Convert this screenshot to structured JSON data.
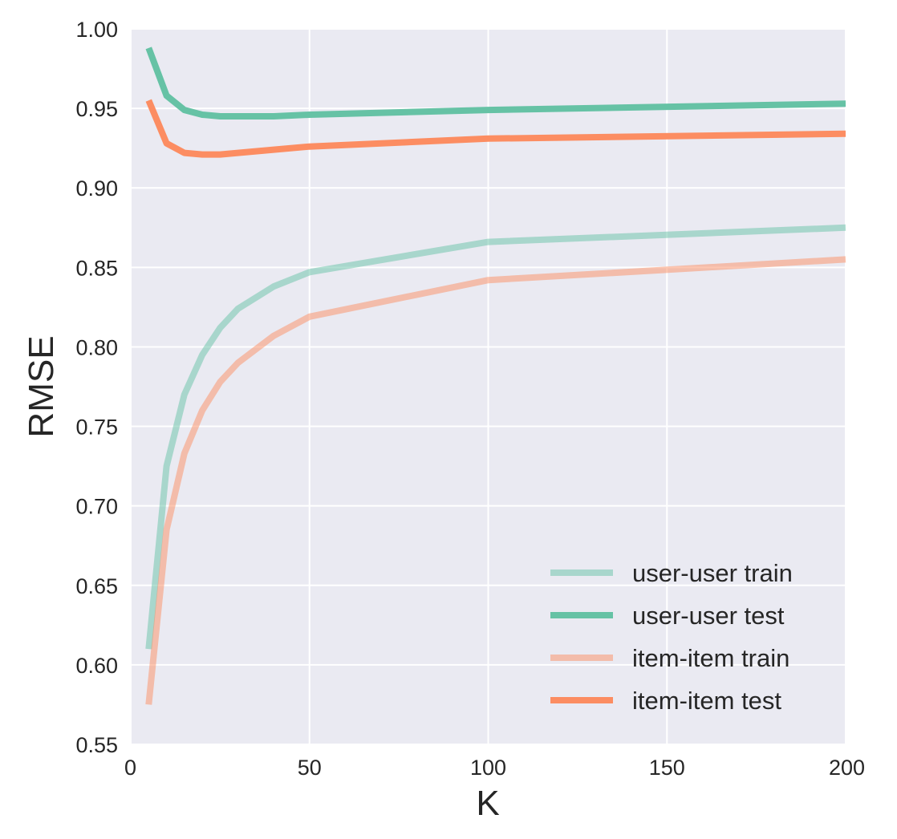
{
  "chart_data": {
    "type": "line",
    "title": "",
    "xlabel": "K",
    "ylabel": "RMSE",
    "xlim": [
      0,
      200
    ],
    "ylim": [
      0.55,
      1.0
    ],
    "xticks": [
      0,
      50,
      100,
      150,
      200
    ],
    "xtick_labels": [
      "0",
      "50",
      "100",
      "150",
      "200"
    ],
    "yticks": [
      0.55,
      0.6,
      0.65,
      0.7,
      0.75,
      0.8,
      0.85,
      0.9,
      0.95,
      1.0
    ],
    "ytick_labels": [
      "0.55",
      "0.60",
      "0.65",
      "0.70",
      "0.75",
      "0.80",
      "0.85",
      "0.90",
      "0.95",
      "1.00"
    ],
    "grid": true,
    "legend_position": "lower-right",
    "background_color": "#EAEAF2",
    "series": [
      {
        "name": "user-user train",
        "color": "#66C2A5",
        "opacity": 0.5,
        "x": [
          5,
          10,
          15,
          20,
          25,
          30,
          40,
          50,
          100,
          200
        ],
        "values": [
          0.61,
          0.725,
          0.77,
          0.795,
          0.812,
          0.824,
          0.838,
          0.847,
          0.866,
          0.875
        ]
      },
      {
        "name": "user-user test",
        "color": "#66C2A5",
        "opacity": 1,
        "x": [
          5,
          10,
          15,
          20,
          25,
          30,
          40,
          50,
          100,
          200
        ],
        "values": [
          0.988,
          0.958,
          0.949,
          0.946,
          0.945,
          0.945,
          0.945,
          0.946,
          0.949,
          0.953
        ]
      },
      {
        "name": "item-item train",
        "color": "#FC8D62",
        "opacity": 0.5,
        "x": [
          5,
          10,
          15,
          20,
          25,
          30,
          40,
          50,
          100,
          200
        ],
        "values": [
          0.575,
          0.685,
          0.733,
          0.76,
          0.778,
          0.79,
          0.807,
          0.819,
          0.842,
          0.855
        ]
      },
      {
        "name": "item-item test",
        "color": "#FC8D62",
        "opacity": 1,
        "x": [
          5,
          10,
          15,
          20,
          25,
          30,
          40,
          50,
          100,
          200
        ],
        "values": [
          0.955,
          0.928,
          0.922,
          0.921,
          0.921,
          0.922,
          0.924,
          0.926,
          0.931,
          0.934
        ]
      }
    ]
  }
}
